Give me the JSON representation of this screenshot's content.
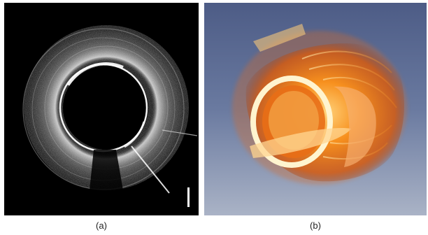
{
  "figure": {
    "panels": [
      {
        "caption": "(a)",
        "image_type": "grayscale cross-sectional OCT image of a circular lumen",
        "background_color": "#000000"
      },
      {
        "caption": "(b)",
        "image_type": "3D volume rendering of the lumen in orange tones",
        "background_color": "#5a6b92",
        "rendering_color": "#f07a1a"
      }
    ],
    "scale_bar": {
      "color": "#ffffff"
    }
  }
}
